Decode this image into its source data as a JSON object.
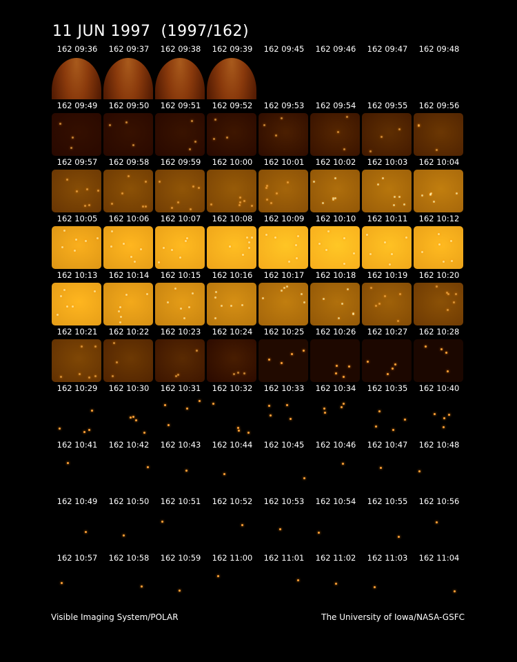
{
  "title": "11 JUN 1997  (1997/162)",
  "footer": {
    "left": "Visible Imaging System/POLAR",
    "right": "The University of Iowa/NASA-GSFC"
  },
  "frames": [
    {
      "label": "162 09:36",
      "kind": "limb",
      "level": 0.45
    },
    {
      "label": "162 09:37",
      "kind": "limb",
      "level": 0.45
    },
    {
      "label": "162 09:38",
      "kind": "limb",
      "level": 0.45
    },
    {
      "label": "162 09:39",
      "kind": "limb",
      "level": 0.42
    },
    {
      "label": "162 09:45",
      "kind": "dark",
      "level": 0.0
    },
    {
      "label": "162 09:46",
      "kind": "dark",
      "level": 0.0
    },
    {
      "label": "162 09:47",
      "kind": "dark",
      "level": 0.02
    },
    {
      "label": "162 09:48",
      "kind": "dark",
      "level": 0.02
    },
    {
      "label": "162 09:49",
      "kind": "glow",
      "level": 0.05
    },
    {
      "label": "162 09:50",
      "kind": "glow",
      "level": 0.06
    },
    {
      "label": "162 09:51",
      "kind": "glow",
      "level": 0.07
    },
    {
      "label": "162 09:52",
      "kind": "glow",
      "level": 0.09
    },
    {
      "label": "162 09:53",
      "kind": "glow",
      "level": 0.14
    },
    {
      "label": "162 09:54",
      "kind": "glow",
      "level": 0.18
    },
    {
      "label": "162 09:55",
      "kind": "glow",
      "level": 0.22
    },
    {
      "label": "162 09:56",
      "kind": "glow",
      "level": 0.27
    },
    {
      "label": "162 09:57",
      "kind": "glow",
      "level": 0.38
    },
    {
      "label": "162 09:58",
      "kind": "glow",
      "level": 0.4
    },
    {
      "label": "162 09:59",
      "kind": "glow",
      "level": 0.42
    },
    {
      "label": "162 10:00",
      "kind": "glow",
      "level": 0.45
    },
    {
      "label": "162 10:01",
      "kind": "glow",
      "level": 0.5
    },
    {
      "label": "162 10:02",
      "kind": "glow",
      "level": 0.54
    },
    {
      "label": "162 10:03",
      "kind": "glow",
      "level": 0.58
    },
    {
      "label": "162 10:04",
      "kind": "glow",
      "level": 0.62
    },
    {
      "label": "162 10:05",
      "kind": "glow",
      "level": 0.85
    },
    {
      "label": "162 10:06",
      "kind": "glow",
      "level": 0.88
    },
    {
      "label": "162 10:07",
      "kind": "glow",
      "level": 0.9
    },
    {
      "label": "162 10:08",
      "kind": "glow",
      "level": 0.92
    },
    {
      "label": "162 10:09",
      "kind": "glow",
      "level": 0.95
    },
    {
      "label": "162 10:10",
      "kind": "glow",
      "level": 0.96
    },
    {
      "label": "162 10:11",
      "kind": "glow",
      "level": 0.93
    },
    {
      "label": "162 10:12",
      "kind": "glow",
      "level": 0.9
    },
    {
      "label": "162 10:13",
      "kind": "glow",
      "level": 0.88
    },
    {
      "label": "162 10:14",
      "kind": "glow",
      "level": 0.82
    },
    {
      "label": "162 10:15",
      "kind": "glow",
      "level": 0.76
    },
    {
      "label": "162 10:16",
      "kind": "glow",
      "level": 0.7
    },
    {
      "label": "162 10:17",
      "kind": "glow",
      "level": 0.62
    },
    {
      "label": "162 10:18",
      "kind": "glow",
      "level": 0.55
    },
    {
      "label": "162 10:19",
      "kind": "glow",
      "level": 0.48
    },
    {
      "label": "162 10:20",
      "kind": "glow",
      "level": 0.4
    },
    {
      "label": "162 10:21",
      "kind": "glow",
      "level": 0.35
    },
    {
      "label": "162 10:22",
      "kind": "glow",
      "level": 0.28
    },
    {
      "label": "162 10:23",
      "kind": "glow",
      "level": 0.2
    },
    {
      "label": "162 10:24",
      "kind": "glow",
      "level": 0.13
    },
    {
      "label": "162 10:25",
      "kind": "stars",
      "level": 0.06
    },
    {
      "label": "162 10:26",
      "kind": "stars",
      "level": 0.04
    },
    {
      "label": "162 10:27",
      "kind": "stars",
      "level": 0.03
    },
    {
      "label": "162 10:28",
      "kind": "stars",
      "level": 0.02
    },
    {
      "label": "162 10:29",
      "kind": "stars",
      "level": 0.0
    },
    {
      "label": "162 10:30",
      "kind": "stars",
      "level": 0.0
    },
    {
      "label": "162 10:31",
      "kind": "stars",
      "level": 0.0
    },
    {
      "label": "162 10:32",
      "kind": "stars",
      "level": 0.0
    },
    {
      "label": "162 10:33",
      "kind": "stars",
      "level": 0.0
    },
    {
      "label": "162 10:34",
      "kind": "stars",
      "level": 0.0
    },
    {
      "label": "162 10:35",
      "kind": "stars",
      "level": 0.0
    },
    {
      "label": "162 10:40",
      "kind": "stars",
      "level": 0.0
    },
    {
      "label": "162 10:41",
      "kind": "sparse",
      "level": 0.0
    },
    {
      "label": "162 10:42",
      "kind": "sparse",
      "level": 0.0
    },
    {
      "label": "162 10:43",
      "kind": "sparse",
      "level": 0.0
    },
    {
      "label": "162 10:44",
      "kind": "sparse",
      "level": 0.0
    },
    {
      "label": "162 10:45",
      "kind": "sparse",
      "level": 0.0
    },
    {
      "label": "162 10:46",
      "kind": "sparse",
      "level": 0.0
    },
    {
      "label": "162 10:47",
      "kind": "sparse",
      "level": 0.0
    },
    {
      "label": "162 10:48",
      "kind": "sparse",
      "level": 0.0
    },
    {
      "label": "162 10:49",
      "kind": "sparse",
      "level": 0.0
    },
    {
      "label": "162 10:50",
      "kind": "sparse",
      "level": 0.0
    },
    {
      "label": "162 10:51",
      "kind": "sparse",
      "level": 0.0
    },
    {
      "label": "162 10:52",
      "kind": "sparse",
      "level": 0.0
    },
    {
      "label": "162 10:53",
      "kind": "sparse",
      "level": 0.0
    },
    {
      "label": "162 10:54",
      "kind": "sparse",
      "level": 0.0
    },
    {
      "label": "162 10:55",
      "kind": "sparse",
      "level": 0.0
    },
    {
      "label": "162 10:56",
      "kind": "sparse",
      "level": 0.0
    },
    {
      "label": "162 10:57",
      "kind": "sparse",
      "level": 0.0
    },
    {
      "label": "162 10:58",
      "kind": "sparse",
      "level": 0.0
    },
    {
      "label": "162 10:59",
      "kind": "sparse",
      "level": 0.0
    },
    {
      "label": "162 11:00",
      "kind": "sparse",
      "level": 0.0
    },
    {
      "label": "162 11:01",
      "kind": "sparse",
      "level": 0.0
    },
    {
      "label": "162 11:02",
      "kind": "sparse",
      "level": 0.0
    },
    {
      "label": "162 11:03",
      "kind": "sparse",
      "level": 0.0
    },
    {
      "label": "162 11:04",
      "kind": "sparse",
      "level": 0.0
    }
  ]
}
